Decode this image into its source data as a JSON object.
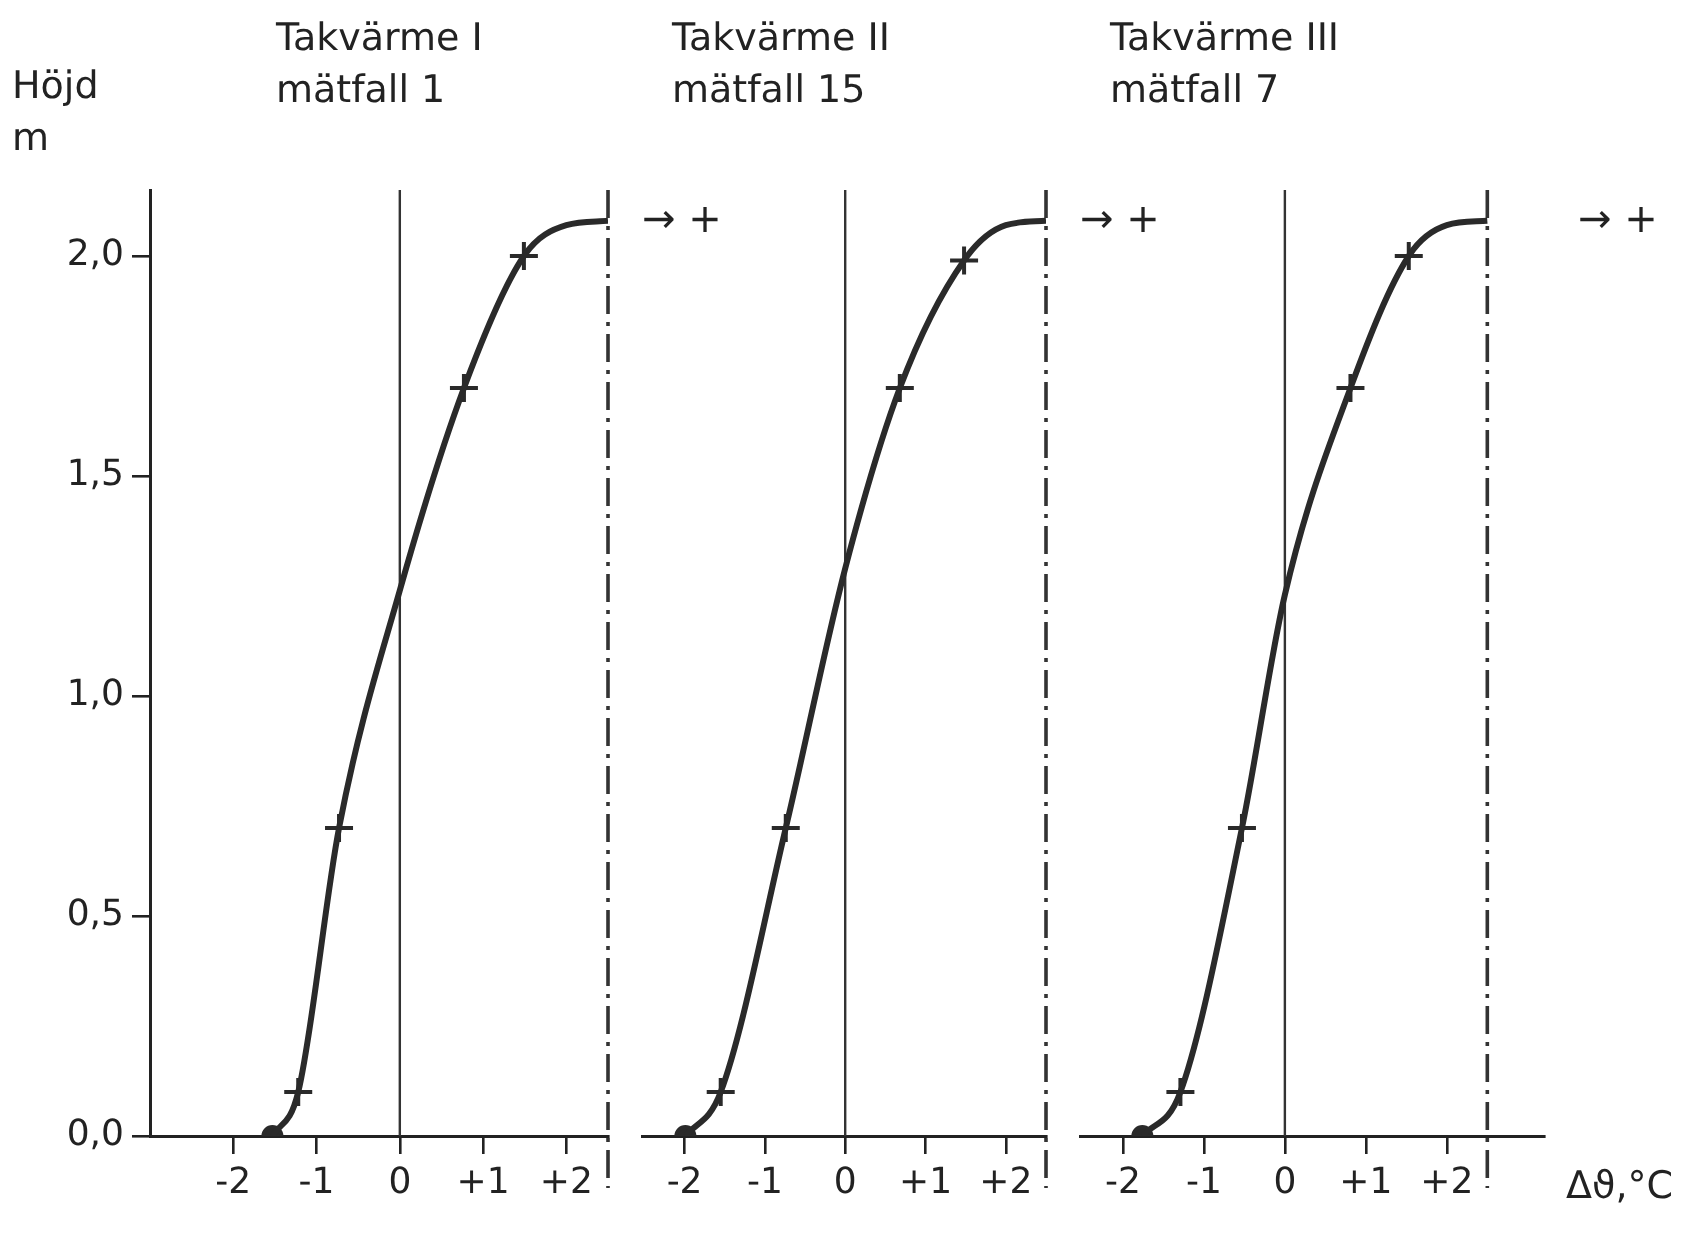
{
  "chart_data": [
    {
      "type": "line",
      "title": "Takvärme I",
      "subtitle": "mätfall 1",
      "ylabel": "Höjd m",
      "annotations": [
        "→ +"
      ],
      "xlim": [
        -3.0,
        2.5
      ],
      "xticks": [
        {
          "value": -2,
          "label": "-2"
        },
        {
          "value": -1,
          "label": "-1"
        },
        {
          "value": 0,
          "label": "0"
        },
        {
          "value": 1,
          "label": "+1"
        },
        {
          "value": 2,
          "label": "+2"
        }
      ],
      "ylim": [
        0,
        2.15
      ],
      "yticks": [
        {
          "value": 0,
          "label": "0,0"
        },
        {
          "value": 0.5,
          "label": "0,5"
        },
        {
          "value": 1,
          "label": "1,0"
        },
        {
          "value": 1.5,
          "label": "1,5"
        },
        {
          "value": 2,
          "label": "2,0"
        }
      ],
      "grid": false,
      "ref_lines": [
        {
          "axis": "x",
          "value": 0,
          "line_style": "solid"
        },
        {
          "axis": "x",
          "value": 2.5,
          "line_style": "dashdot"
        }
      ],
      "series": [
        {
          "type": "line",
          "marker": "none",
          "color": "#2a2a2a",
          "x": [
            -1.53,
            -1.22,
            -0.73,
            0,
            0.77,
            1.49,
            2.0,
            2.5
          ],
          "values": [
            0,
            0.1,
            0.7,
            1.24,
            1.7,
            2.0,
            2.07,
            2.08
          ]
        },
        {
          "type": "scatter",
          "marker": "cross",
          "color": "#2a2a2a",
          "x": [
            -1.22,
            -0.73,
            0.77,
            1.49
          ],
          "values": [
            0.1,
            0.7,
            1.7,
            2.0
          ]
        },
        {
          "type": "scatter",
          "marker": "circle",
          "color": "#2a2a2a",
          "x": [
            -1.53
          ],
          "values": [
            0
          ]
        }
      ]
    },
    {
      "type": "line",
      "title": "Takvärme II",
      "subtitle": "mätfall 15",
      "annotations": [
        "→ +"
      ],
      "xlim": [
        -2.53,
        2.5
      ],
      "xticks": [
        {
          "value": -2,
          "label": "-2"
        },
        {
          "value": -1,
          "label": "-1"
        },
        {
          "value": 0,
          "label": "0"
        },
        {
          "value": 1,
          "label": "+1"
        },
        {
          "value": 2,
          "label": "+2"
        }
      ],
      "ylim": [
        0,
        2.15
      ],
      "tick_labels": "x",
      "grid": false,
      "ref_lines": [
        {
          "axis": "x",
          "value": 0,
          "line_style": "solid"
        },
        {
          "axis": "x",
          "value": 2.5,
          "line_style": "dashdot"
        }
      ],
      "series": [
        {
          "type": "line",
          "marker": "none",
          "color": "#2a2a2a",
          "x": [
            -1.99,
            -1.55,
            -0.74,
            0,
            0.68,
            1.48,
            2.0,
            2.5
          ],
          "values": [
            0,
            0.1,
            0.7,
            1.29,
            1.7,
            1.99,
            2.07,
            2.08
          ]
        },
        {
          "type": "scatter",
          "marker": "cross",
          "color": "#2a2a2a",
          "x": [
            -1.55,
            -0.74,
            0.68,
            1.48
          ],
          "values": [
            0.1,
            0.7,
            1.7,
            1.99
          ]
        },
        {
          "type": "scatter",
          "marker": "circle",
          "color": "#2a2a2a",
          "x": [
            -1.99
          ],
          "values": [
            0
          ]
        }
      ]
    },
    {
      "type": "line",
      "title": "Takvärme III",
      "subtitle": "mätfall 7",
      "xlabel": "Δϑ,°C",
      "annotations": [
        "→ +"
      ],
      "xlim": [
        -2.53,
        3.2
      ],
      "xticks": [
        {
          "value": -2,
          "label": "-2"
        },
        {
          "value": -1,
          "label": "-1"
        },
        {
          "value": 0,
          "label": "0"
        },
        {
          "value": 1,
          "label": "+1"
        },
        {
          "value": 2,
          "label": "+2"
        }
      ],
      "ylim": [
        0,
        2.15
      ],
      "tick_labels": "x",
      "grid": false,
      "ref_lines": [
        {
          "axis": "x",
          "value": 0,
          "line_style": "solid"
        },
        {
          "axis": "x",
          "value": 2.5,
          "line_style": "dashdot"
        }
      ],
      "series": [
        {
          "type": "line",
          "marker": "none",
          "color": "#2a2a2a",
          "x": [
            -1.76,
            -1.29,
            -0.53,
            0,
            0.81,
            1.53,
            2.0,
            2.5
          ],
          "values": [
            0,
            0.1,
            0.7,
            1.23,
            1.7,
            2.0,
            2.07,
            2.08
          ]
        },
        {
          "type": "scatter",
          "marker": "cross",
          "color": "#2a2a2a",
          "x": [
            -1.29,
            -0.53,
            0.81,
            1.53
          ],
          "values": [
            0.1,
            0.7,
            1.7,
            2.0
          ]
        },
        {
          "type": "scatter",
          "marker": "circle",
          "color": "#2a2a2a",
          "x": [
            -1.76
          ],
          "values": [
            0
          ]
        }
      ]
    }
  ]
}
